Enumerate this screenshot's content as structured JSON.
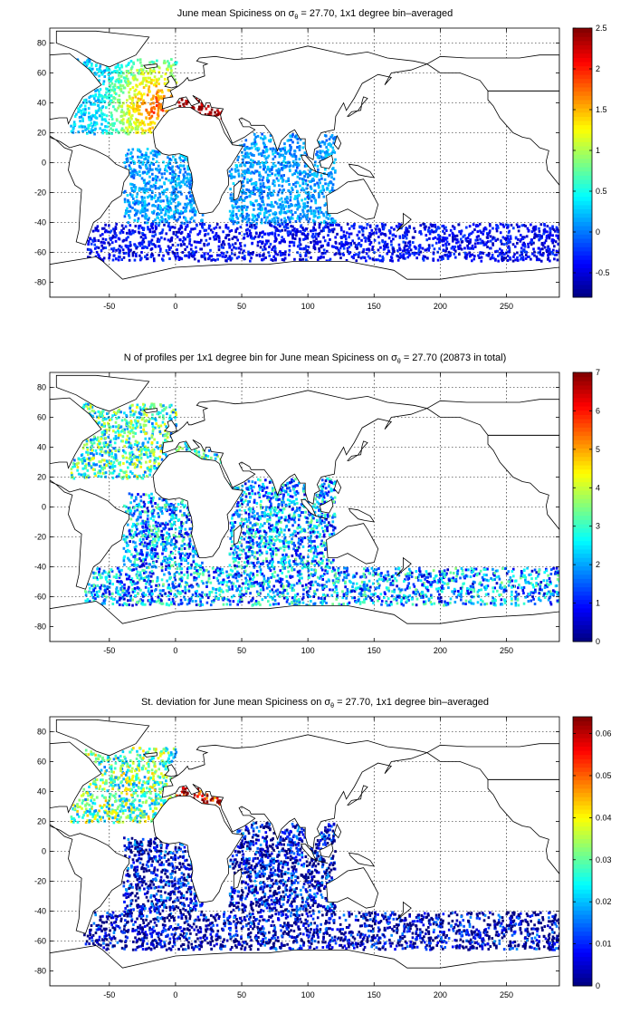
{
  "panels": [
    {
      "title_pre": "June mean Spiciness on σ",
      "title_sub": "θ",
      "title_post": " = 27.70, 1x1 degree bin–averaged",
      "colorbar": {
        "min": -0.8,
        "max": 2.5,
        "ticks": [
          "-0.5",
          "0",
          "0.5",
          "1",
          "1.5",
          "2",
          "2.5"
        ],
        "tick_values": [
          -0.5,
          0,
          0.5,
          1,
          1.5,
          2,
          2.5
        ]
      }
    },
    {
      "title_pre": "N of profiles per 1x1 degree bin for June mean Spiciness on σ",
      "title_sub": "θ",
      "title_post": " = 27.70 (20873 in total)",
      "colorbar": {
        "min": 0,
        "max": 7,
        "ticks": [
          "0",
          "1",
          "2",
          "3",
          "4",
          "5",
          "6",
          "7"
        ],
        "tick_values": [
          0,
          1,
          2,
          3,
          4,
          5,
          6,
          7
        ]
      }
    },
    {
      "title_pre": "St. deviation for June mean Spiciness on σ",
      "title_sub": "θ",
      "title_post": " = 27.70, 1x1 degree bin–averaged",
      "colorbar": {
        "min": 0,
        "max": 0.064,
        "ticks": [
          "0",
          "0.01",
          "0.02",
          "0.03",
          "0.04",
          "0.05",
          "0.06"
        ],
        "tick_values": [
          0,
          0.01,
          0.02,
          0.03,
          0.04,
          0.05,
          0.06
        ]
      }
    }
  ],
  "chart_data": [
    {
      "type": "heatmap",
      "title": "June mean Spiciness on σθ = 27.70, 1x1 degree bin–averaged",
      "xlim": [
        -95,
        290
      ],
      "ylim": [
        -90,
        90
      ],
      "xticks": [
        -50,
        0,
        50,
        100,
        150,
        200,
        250
      ],
      "yticks": [
        -80,
        -60,
        -40,
        -20,
        0,
        20,
        40,
        60,
        80
      ],
      "grid": true,
      "colorbar": {
        "range": [
          -0.8,
          2.5
        ],
        "colormap": "jet"
      },
      "regions": [
        {
          "name": "North Atlantic",
          "lon": [
            -80,
            0
          ],
          "lat": [
            20,
            70
          ],
          "value": 0.7
        },
        {
          "name": "Mediterranean",
          "lon": [
            0,
            35
          ],
          "lat": [
            30,
            45
          ],
          "value": 2.4
        },
        {
          "name": "South Atlantic",
          "lon": [
            -40,
            20
          ],
          "lat": [
            -40,
            10
          ],
          "value": 0.1
        },
        {
          "name": "Indian Ocean",
          "lon": [
            40,
            120
          ],
          "lat": [
            -40,
            20
          ],
          "value": 0.1
        },
        {
          "name": "Southern Ocean",
          "lon": [
            -70,
            290
          ],
          "lat": [
            -65,
            -40
          ],
          "value": -0.4
        }
      ]
    },
    {
      "type": "heatmap",
      "title": "N of profiles per 1x1 degree bin for June mean Spiciness on σθ = 27.70 (20873 in total)",
      "xlim": [
        -95,
        290
      ],
      "ylim": [
        -90,
        90
      ],
      "xticks": [
        -50,
        0,
        50,
        100,
        150,
        200,
        250
      ],
      "yticks": [
        -80,
        -60,
        -40,
        -20,
        0,
        20,
        40,
        60,
        80
      ],
      "grid": true,
      "colorbar": {
        "range": [
          0,
          7
        ],
        "colormap": "jet"
      },
      "regions": [
        {
          "name": "North Atlantic",
          "lon": [
            -80,
            0
          ],
          "lat": [
            20,
            70
          ],
          "value": 3
        },
        {
          "name": "Mediterranean",
          "lon": [
            0,
            35
          ],
          "lat": [
            30,
            45
          ],
          "value": 3
        },
        {
          "name": "South Atlantic",
          "lon": [
            -40,
            20
          ],
          "lat": [
            -40,
            10
          ],
          "value": 2
        },
        {
          "name": "Indian Ocean",
          "lon": [
            40,
            120
          ],
          "lat": [
            -40,
            20
          ],
          "value": 2
        },
        {
          "name": "Southern Ocean",
          "lon": [
            -70,
            290
          ],
          "lat": [
            -65,
            -40
          ],
          "value": 2
        }
      ]
    },
    {
      "type": "heatmap",
      "title": "St. deviation for June mean Spiciness on σθ = 27.70, 1x1 degree bin–averaged",
      "xlim": [
        -95,
        290
      ],
      "ylim": [
        -90,
        90
      ],
      "xticks": [
        -50,
        0,
        50,
        100,
        150,
        200,
        250
      ],
      "yticks": [
        -80,
        -60,
        -40,
        -20,
        0,
        20,
        40,
        60,
        80
      ],
      "grid": true,
      "colorbar": {
        "range": [
          0,
          0.064
        ],
        "colormap": "jet"
      },
      "regions": [
        {
          "name": "North Atlantic",
          "lon": [
            -80,
            0
          ],
          "lat": [
            20,
            70
          ],
          "value": 0.03
        },
        {
          "name": "Mediterranean",
          "lon": [
            0,
            35
          ],
          "lat": [
            30,
            45
          ],
          "value": 0.06
        },
        {
          "name": "South Atlantic",
          "lon": [
            -40,
            20
          ],
          "lat": [
            -40,
            10
          ],
          "value": 0.005
        },
        {
          "name": "Indian Ocean",
          "lon": [
            40,
            120
          ],
          "lat": [
            -40,
            20
          ],
          "value": 0.005
        },
        {
          "name": "Southern Ocean",
          "lon": [
            -70,
            290
          ],
          "lat": [
            -65,
            -40
          ],
          "value": 0.003
        }
      ]
    }
  ]
}
